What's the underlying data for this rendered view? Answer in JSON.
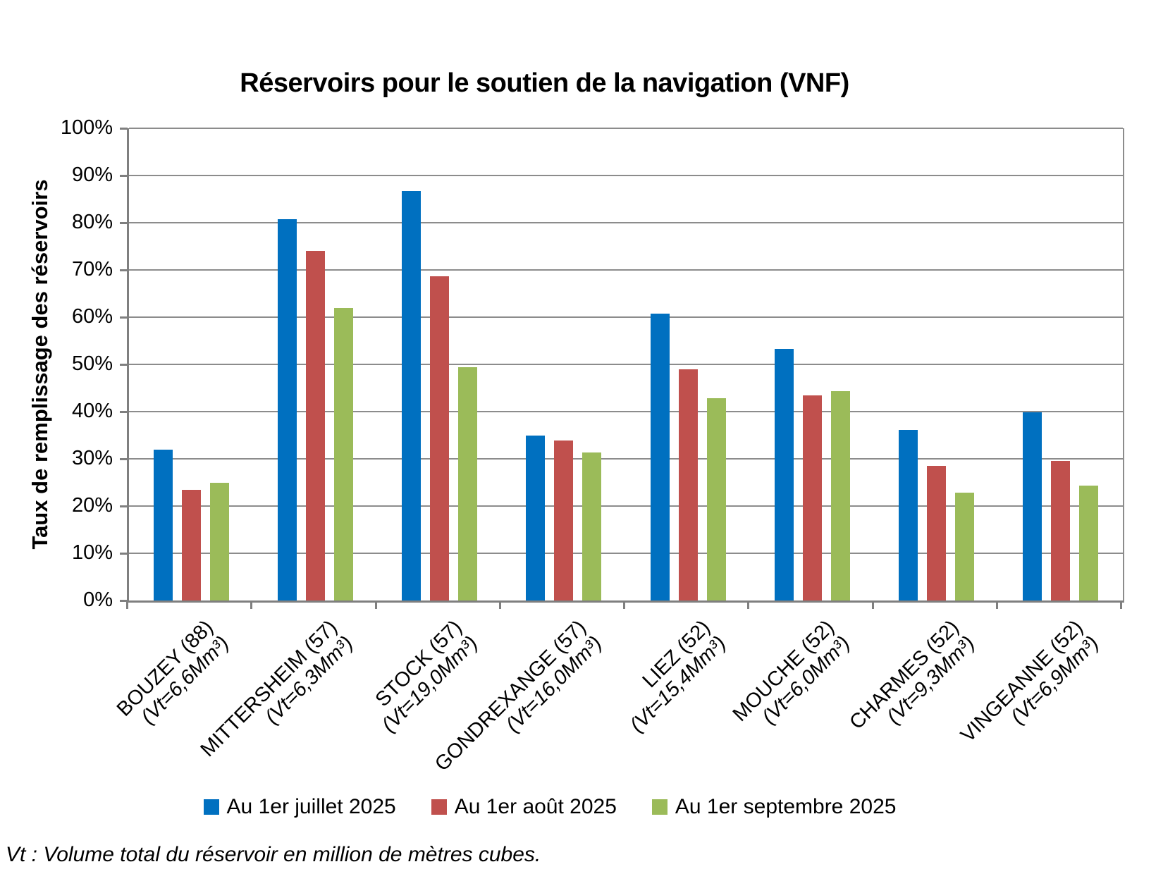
{
  "chart_data": {
    "type": "bar",
    "title": "Réservoirs pour le soutien de la navigation (VNF)",
    "ylabel": "Taux de remplissage des réservoirs",
    "ylim": [
      0,
      100
    ],
    "ytick_step": 10,
    "ytick_labels": [
      "0%",
      "10%",
      "20%",
      "30%",
      "40%",
      "50%",
      "60%",
      "70%",
      "80%",
      "90%",
      "100%"
    ],
    "grid": true,
    "legend_position": "bottom",
    "categories": [
      {
        "label": "BOUZEY (88)",
        "vt": "(Vt=6,6Mm³)"
      },
      {
        "label": "MITTERSHEIM (57)",
        "vt": "(Vt=6,3Mm³)"
      },
      {
        "label": "STOCK (57)",
        "vt": "(Vt=19,0Mm³)"
      },
      {
        "label": "GONDREXANGE (57)",
        "vt": "(Vt=16,0Mm³)"
      },
      {
        "label": "LIEZ (52)",
        "vt": "(Vt=15,4Mm³)"
      },
      {
        "label": "MOUCHE (52)",
        "vt": "(Vt=6,0Mm³)"
      },
      {
        "label": "CHARMES (52)",
        "vt": "(Vt=9,3Mm³)"
      },
      {
        "label": "VINGEANNE (52)",
        "vt": "(Vt=6,9Mm³)"
      }
    ],
    "series": [
      {
        "name": "Au 1er juillet 2025",
        "color": "#0070C0",
        "values": [
          32.0,
          80.7,
          86.7,
          34.9,
          60.8,
          53.3,
          36.2,
          39.9
        ]
      },
      {
        "name": "Au 1er août 2025",
        "color": "#C0504D",
        "values": [
          23.4,
          74.0,
          68.6,
          33.9,
          48.9,
          43.5,
          28.5,
          29.5
        ]
      },
      {
        "name": "Au 1er septembre 2025",
        "color": "#9BBB59",
        "values": [
          25.0,
          62.0,
          49.4,
          31.4,
          42.9,
          44.4,
          22.9,
          24.3
        ]
      }
    ],
    "footnote": "Vt : Volume total du réservoir en million de mètres cubes."
  }
}
